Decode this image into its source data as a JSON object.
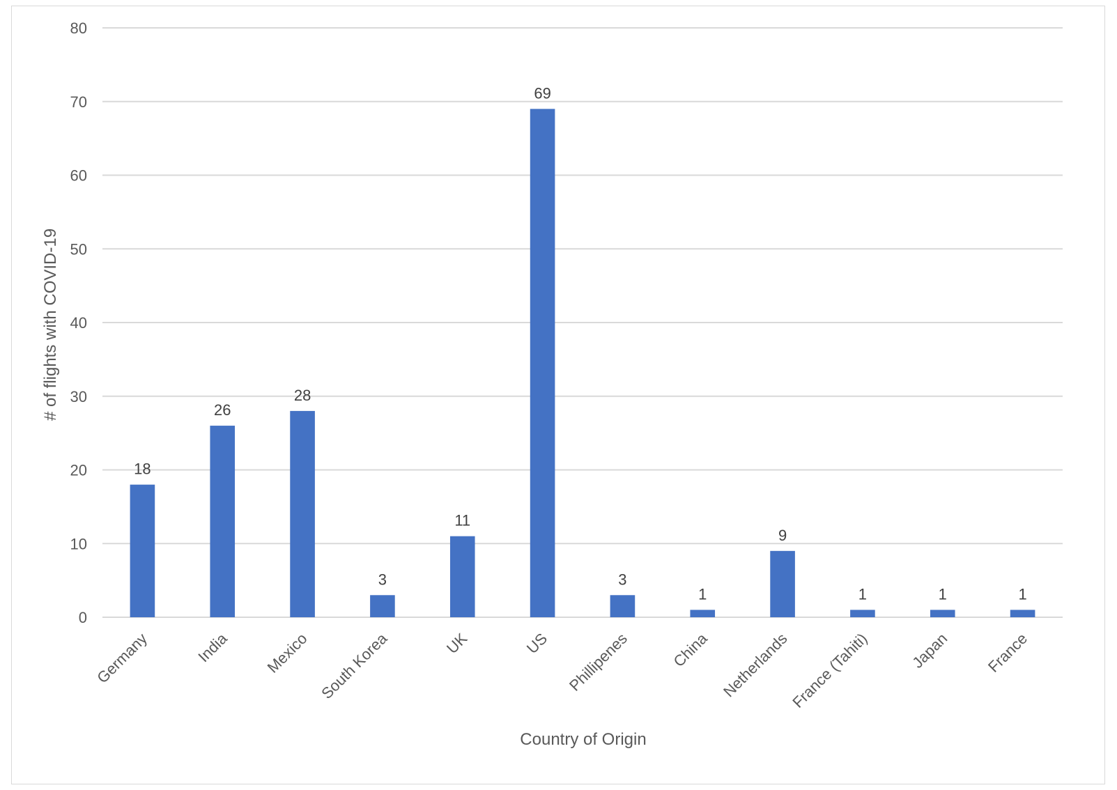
{
  "chart_data": {
    "type": "bar",
    "categories": [
      "Germany",
      "India",
      "Mexico",
      "South Korea",
      "UK",
      "US",
      "Phillipenes",
      "China",
      "Netherlands",
      "France (Tahiti)",
      "Japan",
      "France"
    ],
    "values": [
      18,
      26,
      28,
      3,
      11,
      69,
      3,
      1,
      9,
      1,
      1,
      1
    ],
    "data_labels": [
      "18",
      "26",
      "28",
      "3",
      "11",
      "69",
      "3",
      "1",
      "9",
      "1",
      "1",
      "1"
    ],
    "title": "",
    "xlabel": "Country of Origin",
    "ylabel": "# of flights with COVID-19",
    "ylim": [
      0,
      80
    ],
    "yticks": [
      0,
      10,
      20,
      30,
      40,
      50,
      60,
      70,
      80
    ],
    "grid": true,
    "legend": "none",
    "bar_color": "#4472C4",
    "grid_color": "#d9d9d9"
  }
}
